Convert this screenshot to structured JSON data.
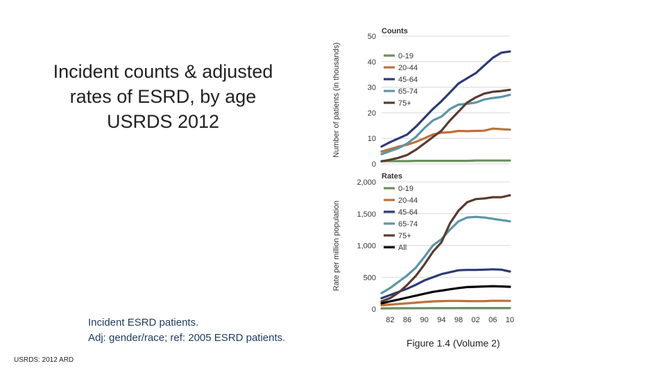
{
  "slide": {
    "title_lines": [
      "Incident counts & adjusted",
      "rates of ESRD, by age",
      "USRDS 2012"
    ],
    "caption_lines": [
      "Incident ESRD patients.",
      "Adj: gender/race; ref: 2005 ESRD patients."
    ],
    "source": "USRDS: 2012 ARD",
    "figure_label": "Figure 1.4 (Volume 2)"
  },
  "chart_data": [
    {
      "type": "line",
      "title": "Counts",
      "ylabel": "Number of patients (in thousands)",
      "ylim": [
        0,
        50
      ],
      "yticks": [
        "0",
        "10",
        "20",
        "30",
        "40",
        "50"
      ],
      "x": [
        1980,
        1982,
        1984,
        1986,
        1988,
        1990,
        1992,
        1994,
        1996,
        1998,
        2000,
        2002,
        2004,
        2006,
        2008,
        2010
      ],
      "series": [
        {
          "name": "0-19",
          "color": "#6b8f5e",
          "values": [
            1.1,
            1.1,
            1.1,
            1.1,
            1.2,
            1.2,
            1.2,
            1.2,
            1.2,
            1.2,
            1.2,
            1.3,
            1.3,
            1.3,
            1.3,
            1.3
          ]
        },
        {
          "name": "20-44",
          "color": "#c0703a",
          "values": [
            4.8,
            5.8,
            6.8,
            7.5,
            8.6,
            10.0,
            11.5,
            12.2,
            12.4,
            12.9,
            12.8,
            12.9,
            13.0,
            13.8,
            13.6,
            13.4
          ]
        },
        {
          "name": "45-64",
          "color": "#2b3a78",
          "values": [
            6.8,
            8.5,
            10.0,
            11.5,
            14.5,
            18.0,
            21.5,
            24.5,
            28.0,
            31.5,
            33.5,
            35.5,
            38.5,
            41.5,
            43.5,
            44.0
          ]
        },
        {
          "name": "65-74",
          "color": "#5a96a8",
          "values": [
            3.8,
            5.0,
            6.2,
            8.0,
            10.5,
            14.0,
            17.0,
            18.5,
            21.5,
            23.2,
            23.5,
            24.0,
            25.2,
            25.8,
            26.2,
            27.0
          ]
        },
        {
          "name": "75+",
          "color": "#5b3a2e",
          "values": [
            1.0,
            1.6,
            2.4,
            3.5,
            5.5,
            8.0,
            10.5,
            13.0,
            17.0,
            20.5,
            24.0,
            26.0,
            27.5,
            28.2,
            28.5,
            29.0
          ]
        }
      ]
    },
    {
      "type": "line",
      "title": "Rates",
      "ylabel": "Rate per million population",
      "ylim": [
        0,
        2000
      ],
      "yticks": [
        "0",
        "500",
        "1,000",
        "1,500",
        "2,000"
      ],
      "xticks": [
        "82",
        "86",
        "90",
        "94",
        "98",
        "02",
        "06",
        "10"
      ],
      "x": [
        1980,
        1982,
        1984,
        1986,
        1988,
        1990,
        1992,
        1994,
        1996,
        1998,
        2000,
        2002,
        2004,
        2006,
        2008,
        2010
      ],
      "series": [
        {
          "name": "0-19",
          "color": "#6b8f5e",
          "values": [
            10,
            11,
            12,
            12,
            13,
            13,
            14,
            14,
            14,
            14,
            15,
            15,
            15,
            15,
            15,
            15
          ]
        },
        {
          "name": "20-44",
          "color": "#c0703a",
          "values": [
            60,
            70,
            80,
            90,
            100,
            110,
            120,
            125,
            128,
            128,
            125,
            124,
            125,
            130,
            130,
            128
          ]
        },
        {
          "name": "45-64",
          "color": "#2b3a78",
          "values": [
            170,
            220,
            270,
            320,
            380,
            450,
            500,
            550,
            580,
            610,
            615,
            615,
            620,
            625,
            620,
            590
          ]
        },
        {
          "name": "65-74",
          "color": "#5a96a8",
          "values": [
            250,
            330,
            430,
            530,
            650,
            820,
            1000,
            1100,
            1250,
            1380,
            1440,
            1450,
            1440,
            1420,
            1400,
            1380
          ]
        },
        {
          "name": "75+",
          "color": "#5b3a2e",
          "values": [
            120,
            170,
            260,
            380,
            520,
            700,
            900,
            1050,
            1350,
            1550,
            1680,
            1730,
            1740,
            1760,
            1760,
            1790
          ]
        },
        {
          "name": "All",
          "color": "#000000",
          "values": [
            90,
            120,
            150,
            180,
            210,
            240,
            270,
            290,
            310,
            330,
            345,
            350,
            355,
            360,
            355,
            350
          ]
        }
      ]
    }
  ]
}
